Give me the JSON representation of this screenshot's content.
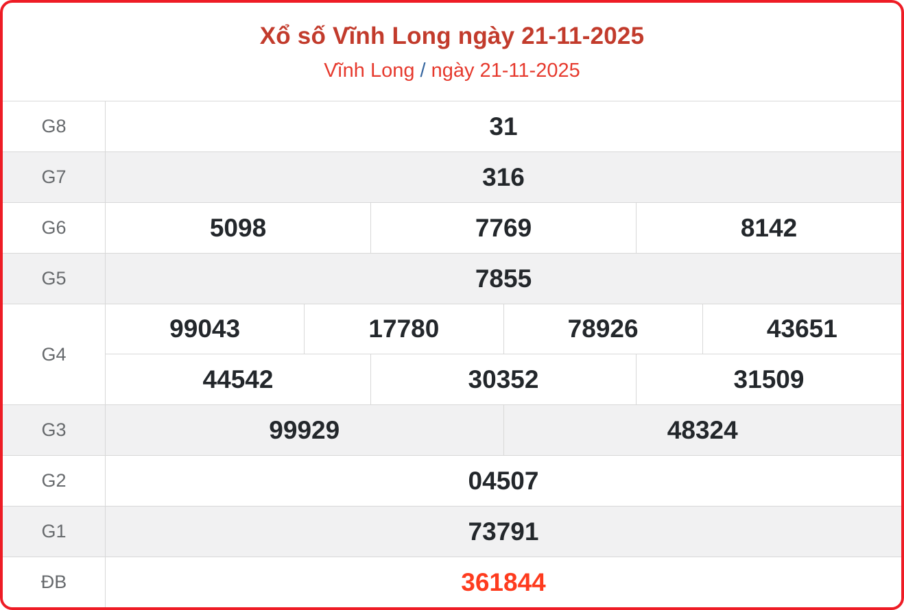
{
  "header": {
    "title": "Xổ số Vĩnh Long ngày 21-11-2025",
    "subtitle_region": "Vĩnh Long",
    "subtitle_separator": "/",
    "subtitle_date": "ngày 21-11-2025"
  },
  "colors": {
    "card_border": "#ee1c25",
    "title": "#c23b2c",
    "subtitle": "#e6392d",
    "subtitle_separator": "#36669f",
    "special_prize_number": "#fe3b1e",
    "prize_number": "#23272b",
    "row_shade": "#f1f1f2"
  },
  "results": {
    "rows": [
      {
        "label": "G8",
        "shaded": false,
        "special": false,
        "lines": [
          [
            "31"
          ]
        ]
      },
      {
        "label": "G7",
        "shaded": true,
        "special": false,
        "lines": [
          [
            "316"
          ]
        ]
      },
      {
        "label": "G6",
        "shaded": false,
        "special": false,
        "lines": [
          [
            "5098",
            "7769",
            "8142"
          ]
        ]
      },
      {
        "label": "G5",
        "shaded": true,
        "special": false,
        "lines": [
          [
            "7855"
          ]
        ]
      },
      {
        "label": "G4",
        "shaded": false,
        "special": false,
        "lines": [
          [
            "99043",
            "17780",
            "78926",
            "43651"
          ],
          [
            "44542",
            "30352",
            "31509"
          ]
        ]
      },
      {
        "label": "G3",
        "shaded": true,
        "special": false,
        "lines": [
          [
            "99929",
            "48324"
          ]
        ]
      },
      {
        "label": "G2",
        "shaded": false,
        "special": false,
        "lines": [
          [
            "04507"
          ]
        ]
      },
      {
        "label": "G1",
        "shaded": true,
        "special": false,
        "lines": [
          [
            "73791"
          ]
        ]
      },
      {
        "label": "ĐB",
        "shaded": false,
        "special": true,
        "lines": [
          [
            "361844"
          ]
        ]
      }
    ]
  }
}
